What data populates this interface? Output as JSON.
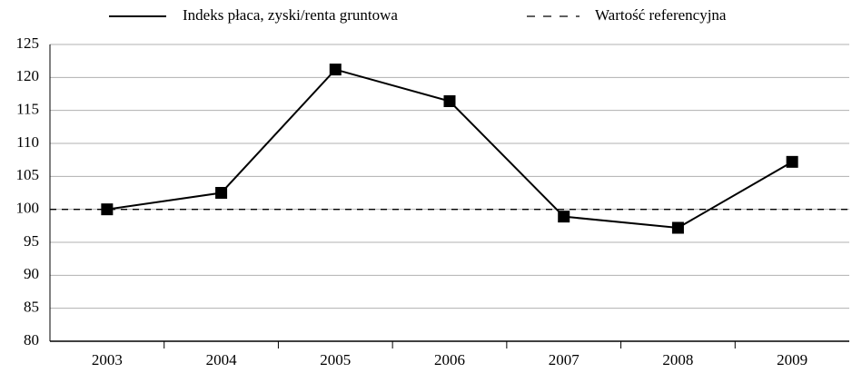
{
  "chart_data": {
    "type": "line",
    "categories": [
      "2003",
      "2004",
      "2005",
      "2006",
      "2007",
      "2008",
      "2009"
    ],
    "series": [
      {
        "name": "Indeks płaca, zyski/renta gruntowa",
        "color": "#000000",
        "values": [
          100,
          102.5,
          121.2,
          116.4,
          98.9,
          97.2,
          107.2
        ]
      }
    ],
    "reference_lines": [
      {
        "name": "Wartość referencyjna",
        "value": 100,
        "color": "#000000",
        "dashed": true
      }
    ],
    "ylim": [
      80,
      125
    ],
    "yticks": [
      80,
      85,
      90,
      95,
      100,
      105,
      110,
      115,
      120,
      125
    ],
    "grid": true,
    "legend": "top"
  }
}
